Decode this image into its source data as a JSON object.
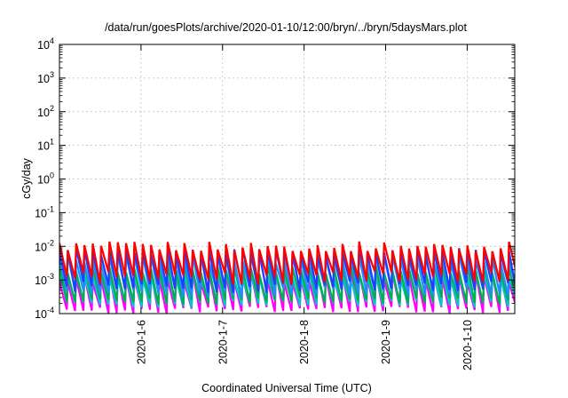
{
  "chart_data": {
    "type": "line",
    "title": "/data/run/goesPlots/archive/2020-01-10/12:00/bryn/../bryn/5daysMars.plot",
    "xlabel": "Coordinated Universal Time (UTC)",
    "ylabel": "cGy/day",
    "y_scale": "log",
    "ylim": [
      0.0001,
      10000
    ],
    "xlim": [
      "2020-01-05 00:00",
      "2020-01-10 14:00"
    ],
    "x_ticks": [
      "2020-1-6",
      "2020-1-7",
      "2020-1-8",
      "2020-1-9",
      "2020-1-10"
    ],
    "y_ticks": [
      {
        "base": "10",
        "exp": "-4"
      },
      {
        "base": "10",
        "exp": "-3"
      },
      {
        "base": "10",
        "exp": "-2"
      },
      {
        "base": "10",
        "exp": "-1"
      },
      {
        "base": "10",
        "exp": "0"
      },
      {
        "base": "10",
        "exp": "1"
      },
      {
        "base": "10",
        "exp": "2"
      },
      {
        "base": "10",
        "exp": "3"
      },
      {
        "base": "10",
        "exp": "4"
      }
    ],
    "grid": true,
    "legend": "none",
    "sawtooth_period_hours": 2.45,
    "series": [
      {
        "color": "#ff0000",
        "peak_range": [
          0.007,
          0.014
        ],
        "trough_range": [
          0.0007,
          0.0018
        ]
      },
      {
        "color": "#1f3fff",
        "peak_range": [
          0.005,
          0.009
        ],
        "trough_range": [
          0.0004,
          0.0009
        ]
      },
      {
        "color": "#1f8fff",
        "peak_range": [
          0.003,
          0.006
        ],
        "trough_range": [
          0.0003,
          0.0006
        ]
      },
      {
        "color": "#00b050",
        "peak_range": [
          0.0015,
          0.003
        ],
        "trough_range": [
          0.00018,
          0.0003
        ]
      },
      {
        "color": "#00c8c8",
        "peak_range": [
          0.001,
          0.002
        ],
        "trough_range": [
          0.00015,
          0.00025
        ]
      },
      {
        "color": "#ff00ff",
        "peak_range": [
          0.0008,
          0.0018
        ],
        "trough_range": [
          0.0001,
          0.00016
        ]
      }
    ]
  }
}
